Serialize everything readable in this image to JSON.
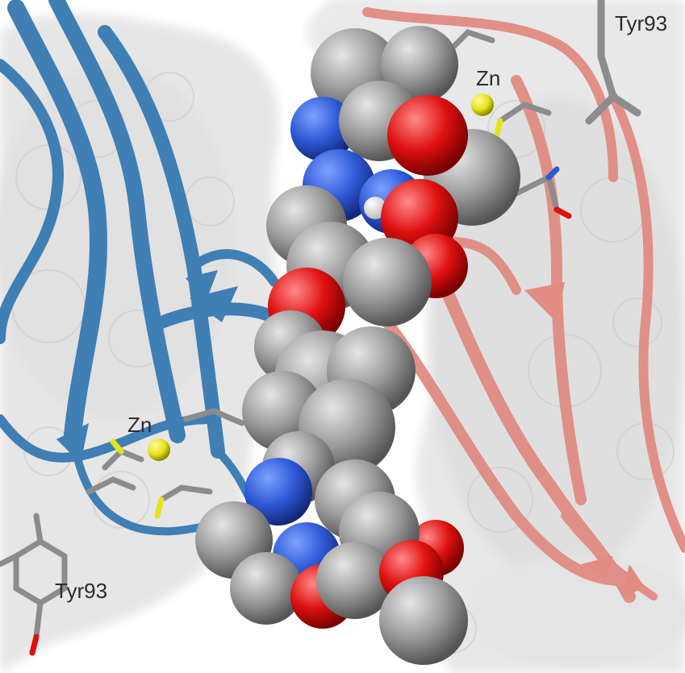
{
  "labels": {
    "zn_top": "Zn",
    "tyr_top": "Tyr93",
    "zn_left": "Zn",
    "tyr_left": "Tyr93"
  },
  "colors": {
    "background": "#ffffff",
    "surface": "#e9e9e9",
    "chain_a_ribbon": "#3f7fb4",
    "chain_b_ribbon": "#e08c82",
    "carbon": "#9a9a9a",
    "nitrogen": "#2f5bd8",
    "oxygen": "#e01010",
    "hydrogen": "#f2f2f2",
    "zinc": "#e6e31a",
    "sulfur": "#e6e31a"
  },
  "icons": [
    "protein-surface",
    "ribbon-chain-a",
    "ribbon-chain-b",
    "ligand-spheres",
    "zinc-ion",
    "tyrosine-sticks"
  ]
}
